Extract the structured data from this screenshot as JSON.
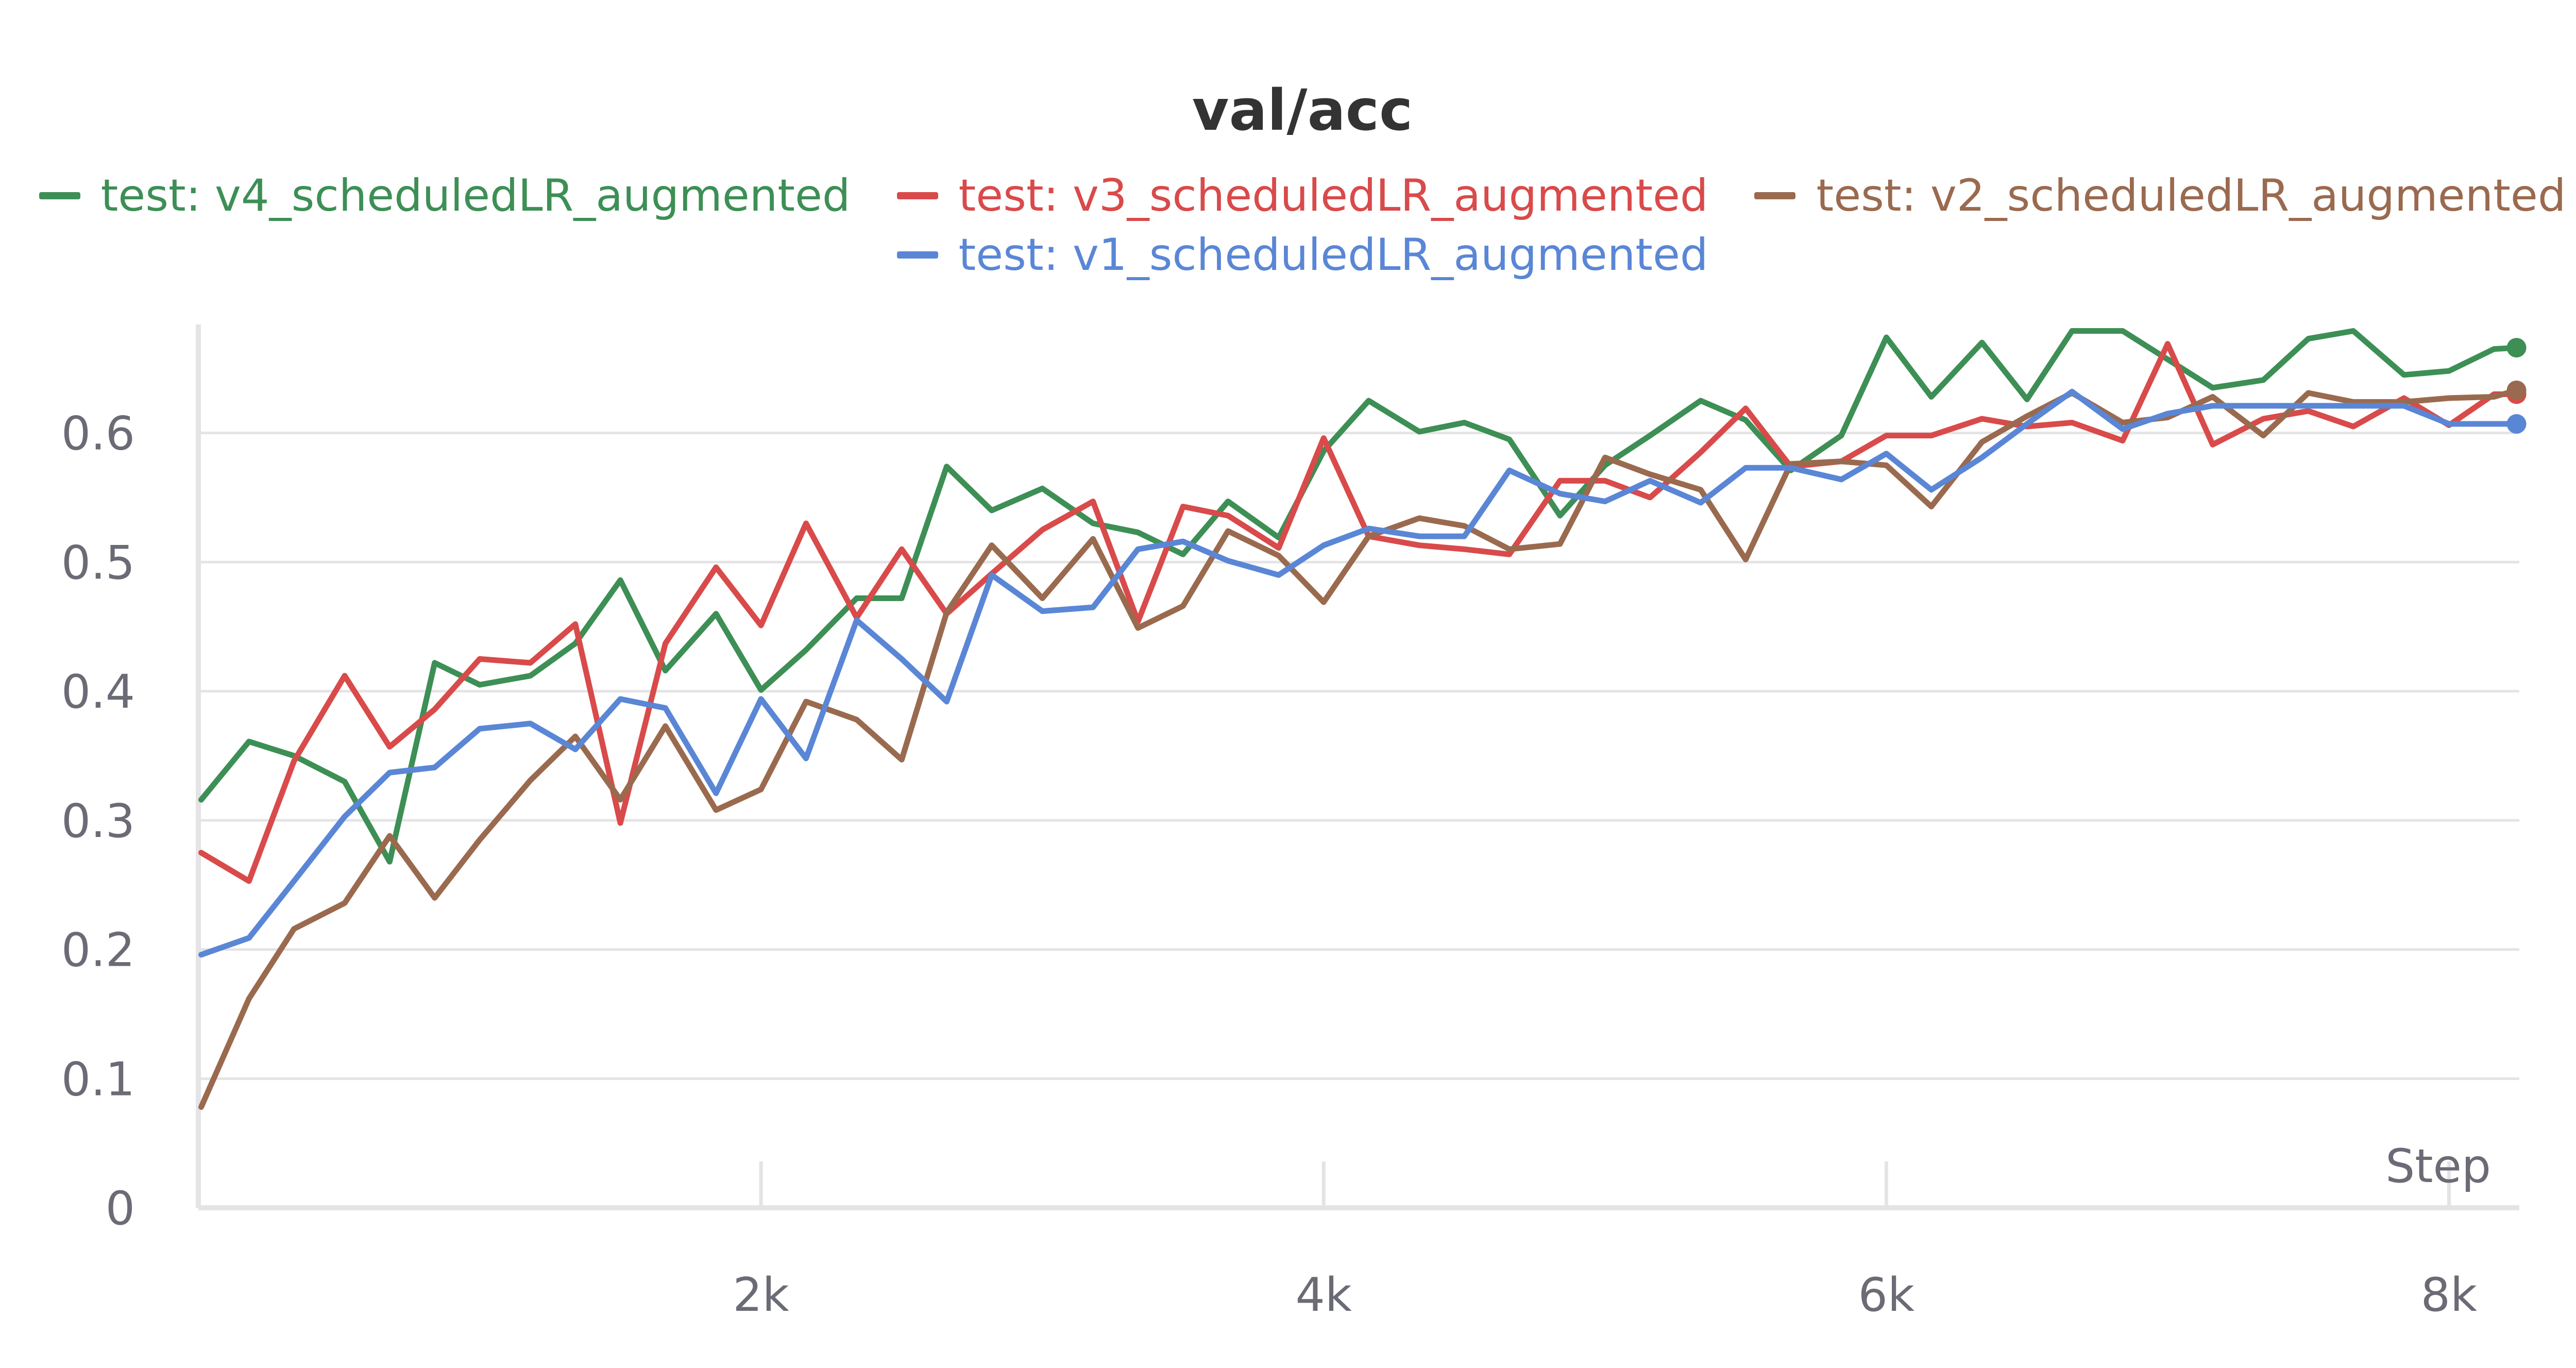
{
  "chart_data": {
    "type": "line",
    "title": "val/acc",
    "xlabel": "Step",
    "ylabel": "",
    "xlim": [
      0,
      8250
    ],
    "ylim": [
      0,
      0.68
    ],
    "xticks": [
      2000,
      4000,
      6000,
      8000
    ],
    "xtick_labels": [
      "2k",
      "4k",
      "6k",
      "8k"
    ],
    "yticks": [
      0,
      0.1,
      0.2,
      0.3,
      0.4,
      0.5,
      0.6
    ],
    "ytick_labels": [
      "0",
      "0.1",
      "0.2",
      "0.3",
      "0.4",
      "0.5",
      "0.6"
    ],
    "grid": true,
    "legend_position": "top-center",
    "x": [
      10,
      180,
      340,
      520,
      680,
      840,
      1000,
      1180,
      1340,
      1500,
      1660,
      1840,
      2000,
      2160,
      2340,
      2500,
      2660,
      2820,
      3000,
      3180,
      3340,
      3500,
      3660,
      3840,
      4000,
      4160,
      4340,
      4500,
      4660,
      4840,
      5000,
      5160,
      5340,
      5500,
      5660,
      5840,
      6000,
      6160,
      6340,
      6500,
      6660,
      6840,
      7000,
      7160,
      7340,
      7500,
      7660,
      7840,
      8000,
      8160,
      8240
    ],
    "series": [
      {
        "name": "test: v4_scheduledLR_augmented",
        "color": "#3d8f55",
        "values": [
          0.316,
          0.361,
          0.35,
          0.33,
          0.268,
          0.422,
          0.405,
          0.412,
          0.437,
          0.486,
          0.416,
          0.46,
          0.401,
          0.432,
          0.472,
          0.472,
          0.574,
          0.54,
          0.557,
          0.53,
          0.523,
          0.506,
          0.547,
          0.519,
          0.586,
          0.625,
          0.601,
          0.608,
          0.595,
          0.536,
          0.575,
          0.598,
          0.625,
          0.61,
          0.571,
          0.598,
          0.674,
          0.628,
          0.67,
          0.626,
          0.679,
          0.679,
          0.657,
          0.635,
          0.641,
          0.673,
          0.679,
          0.645,
          0.648,
          0.665,
          0.666
        ]
      },
      {
        "name": "test: v3_scheduledLR_augmented",
        "color": "#d94a4a",
        "values": [
          0.275,
          0.253,
          0.346,
          0.412,
          0.357,
          0.386,
          0.425,
          0.422,
          0.452,
          0.298,
          0.437,
          0.496,
          0.451,
          0.53,
          0.457,
          0.51,
          0.46,
          0.491,
          0.525,
          0.547,
          0.454,
          0.543,
          0.536,
          0.511,
          0.596,
          0.52,
          0.513,
          0.51,
          0.506,
          0.563,
          0.563,
          0.55,
          0.585,
          0.619,
          0.574,
          0.578,
          0.598,
          0.598,
          0.611,
          0.605,
          0.608,
          0.594,
          0.669,
          0.591,
          0.611,
          0.617,
          0.605,
          0.627,
          0.606,
          0.63,
          0.63
        ]
      },
      {
        "name": "test: v2_scheduledLR_augmented",
        "color": "#9a6a4f",
        "values": [
          0.078,
          0.162,
          0.216,
          0.236,
          0.288,
          0.24,
          0.285,
          0.331,
          0.365,
          0.316,
          0.373,
          0.308,
          0.324,
          0.392,
          0.378,
          0.347,
          0.461,
          0.513,
          0.472,
          0.518,
          0.449,
          0.466,
          0.524,
          0.505,
          0.469,
          0.52,
          0.534,
          0.528,
          0.51,
          0.514,
          0.581,
          0.568,
          0.556,
          0.502,
          0.576,
          0.578,
          0.575,
          0.543,
          0.593,
          0.613,
          0.631,
          0.608,
          0.612,
          0.628,
          0.598,
          0.631,
          0.624,
          0.624,
          0.627,
          0.628,
          0.633
        ]
      },
      {
        "name": "test: v1_scheduledLR_augmented",
        "color": "#5a86d6",
        "values": [
          0.196,
          0.209,
          0.253,
          0.303,
          0.337,
          0.341,
          0.371,
          0.375,
          0.355,
          0.394,
          0.387,
          0.321,
          0.394,
          0.348,
          0.455,
          0.425,
          0.392,
          0.49,
          0.462,
          0.465,
          0.51,
          0.516,
          0.501,
          0.49,
          0.513,
          0.526,
          0.52,
          0.52,
          0.571,
          0.553,
          0.547,
          0.563,
          0.546,
          0.573,
          0.573,
          0.564,
          0.584,
          0.556,
          0.581,
          0.607,
          0.632,
          0.603,
          0.615,
          0.621,
          0.621,
          0.621,
          0.621,
          0.621,
          0.607,
          0.607,
          0.607
        ]
      }
    ]
  }
}
